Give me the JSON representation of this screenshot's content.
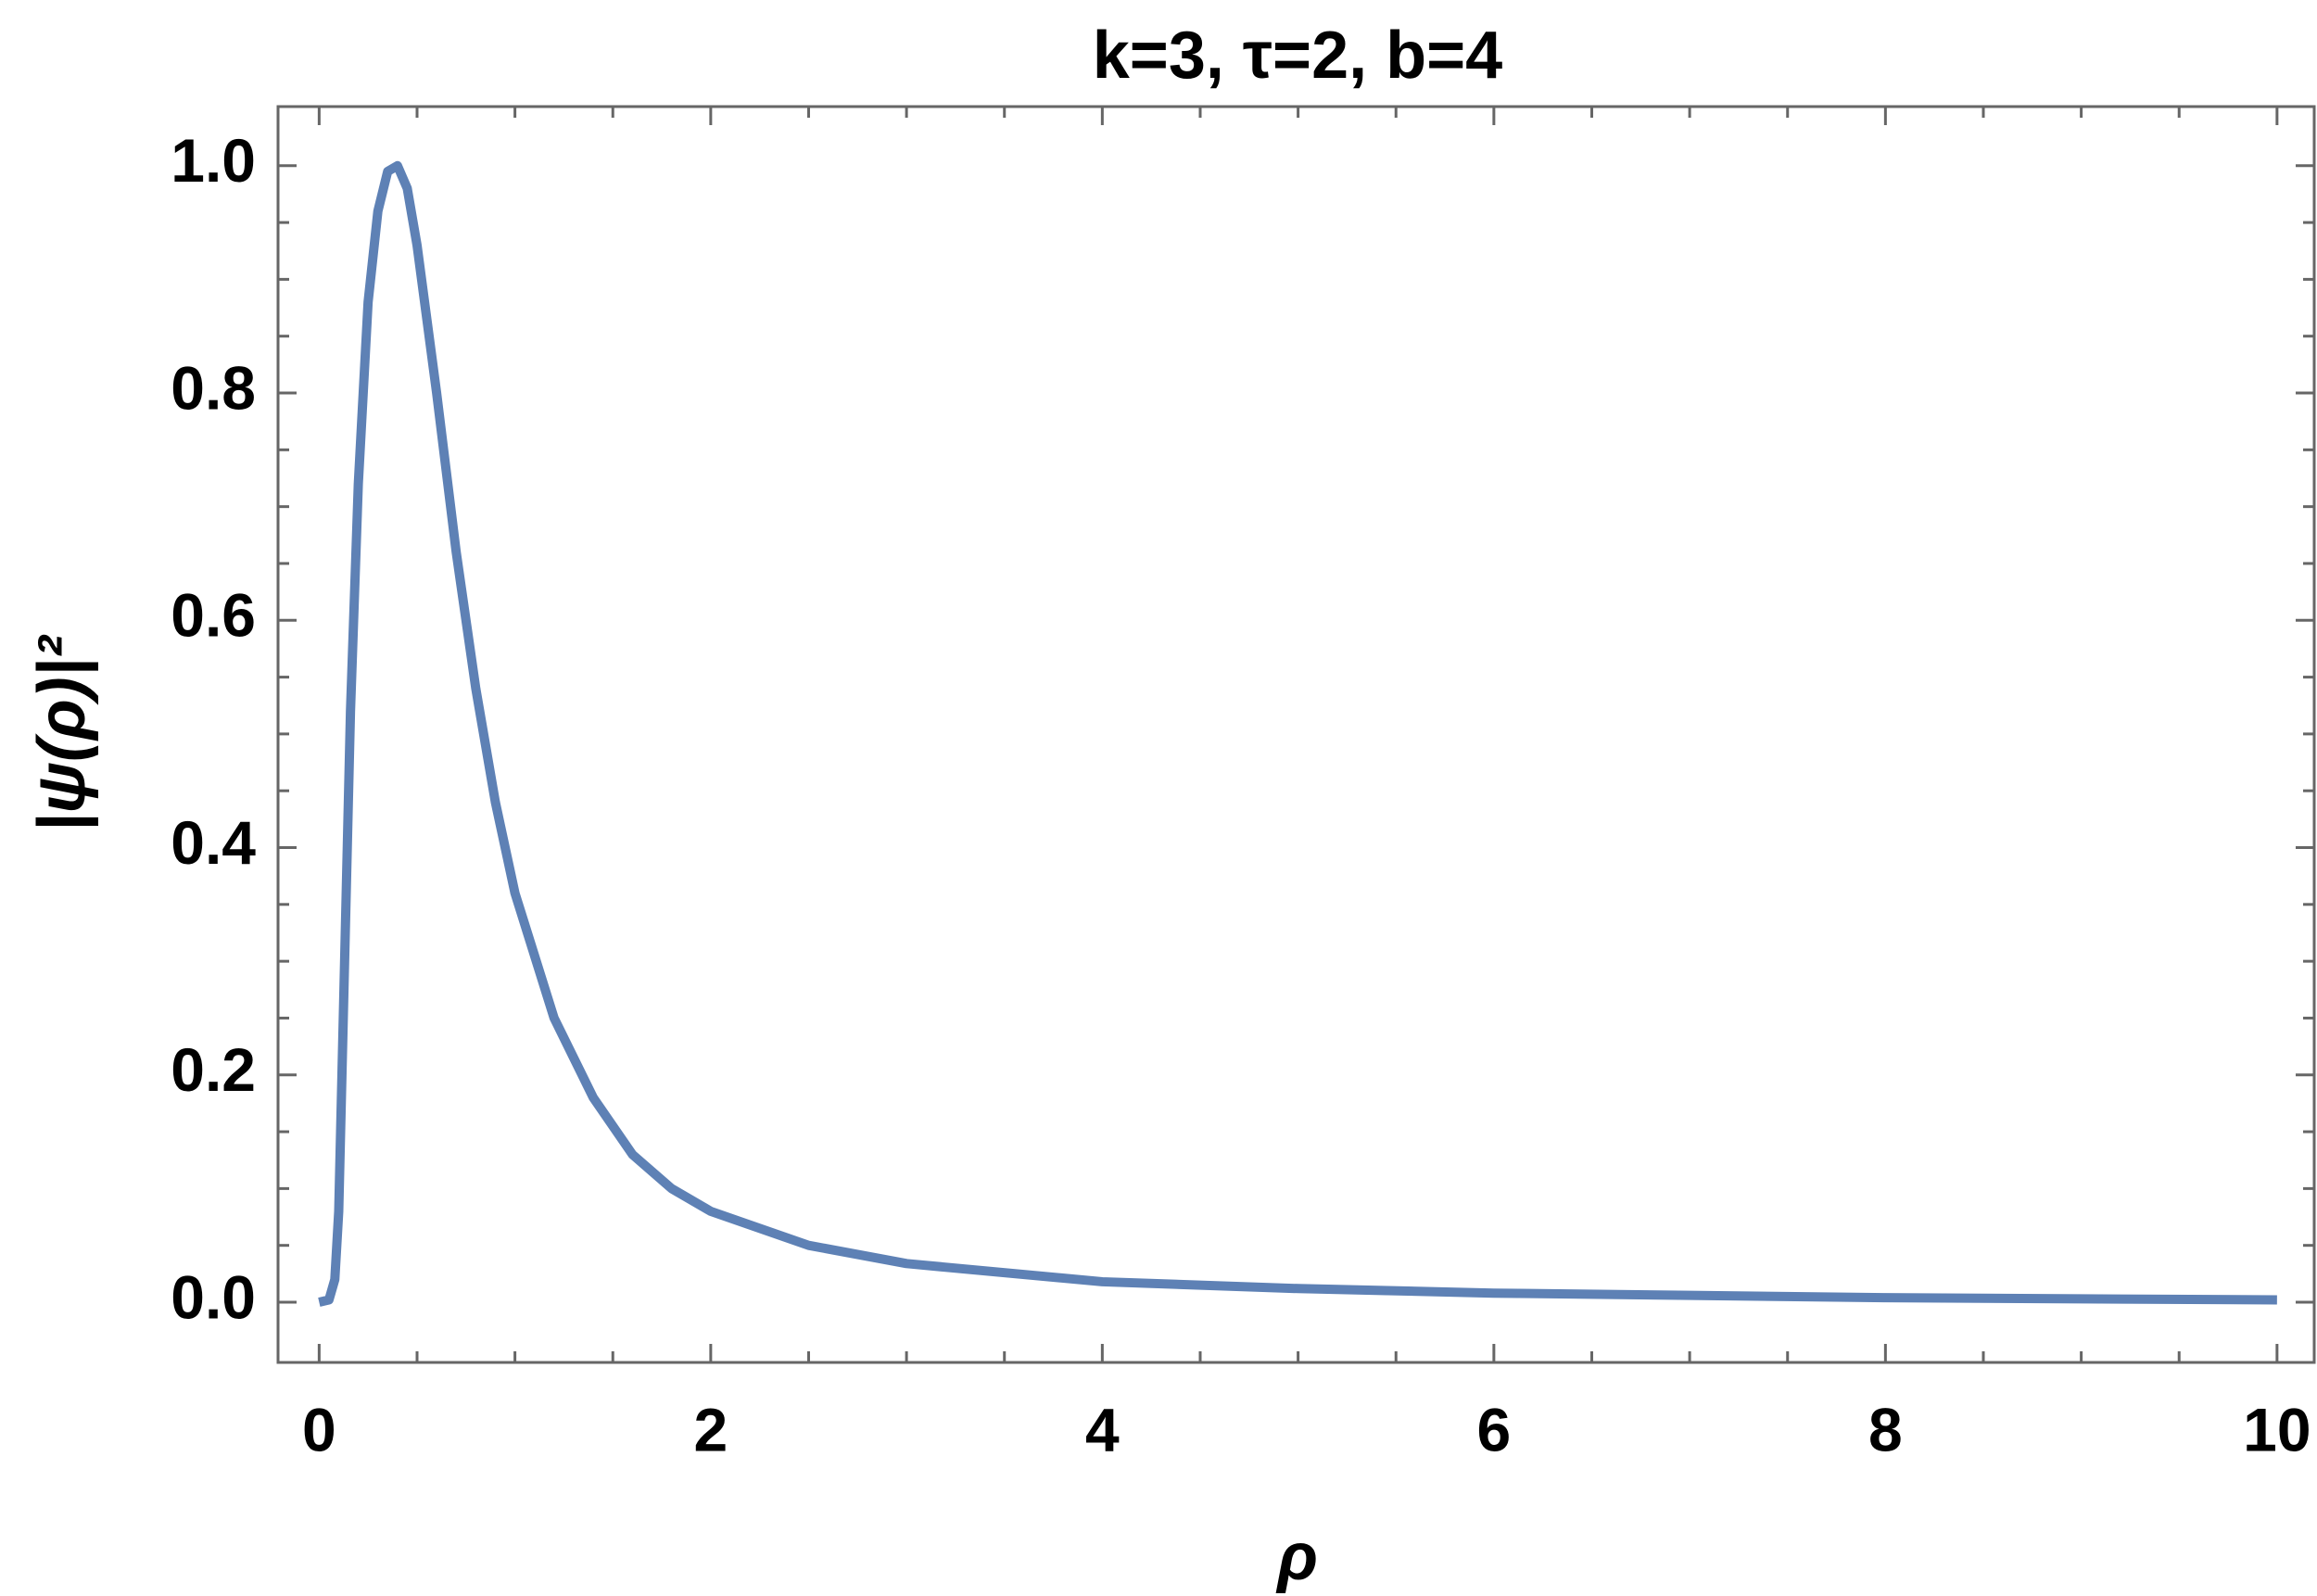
{
  "chart_data": {
    "type": "line",
    "title": "k=3, τ=2, b=4",
    "x_label": "ρ",
    "y_label": "|ψ(ρ)|²",
    "x": [
      0,
      0.05,
      0.08,
      0.1,
      0.13,
      0.16,
      0.2,
      0.25,
      0.3,
      0.35,
      0.4,
      0.45,
      0.5,
      0.6,
      0.7,
      0.8,
      0.9,
      1.0,
      1.2,
      1.4,
      1.6,
      1.8,
      2.0,
      2.5,
      3,
      4,
      5,
      6,
      7,
      8,
      9,
      10
    ],
    "series": [
      {
        "name": "|ψ(ρ)|²",
        "color": "#5e81b5",
        "values": [
          0,
          0.002,
          0.02,
          0.08,
          0.3,
          0.52,
          0.72,
          0.88,
          0.96,
          0.995,
          1.0,
          0.98,
          0.93,
          0.8,
          0.66,
          0.54,
          0.44,
          0.36,
          0.25,
          0.18,
          0.13,
          0.1,
          0.08,
          0.05,
          0.034,
          0.018,
          0.012,
          0.008,
          0.006,
          0.004,
          0.003,
          0.002
        ]
      }
    ],
    "xlim": [
      -0.21,
      10.19
    ],
    "ylim": [
      -0.053,
      1.052
    ],
    "xticks": [
      0,
      2,
      4,
      6,
      8,
      10
    ],
    "yticks": [
      {
        "value": 0,
        "label": "0.0"
      },
      0.2,
      0.4,
      0.6,
      0.8,
      {
        "value": 1,
        "label": "1.0"
      }
    ],
    "grid": false
  }
}
